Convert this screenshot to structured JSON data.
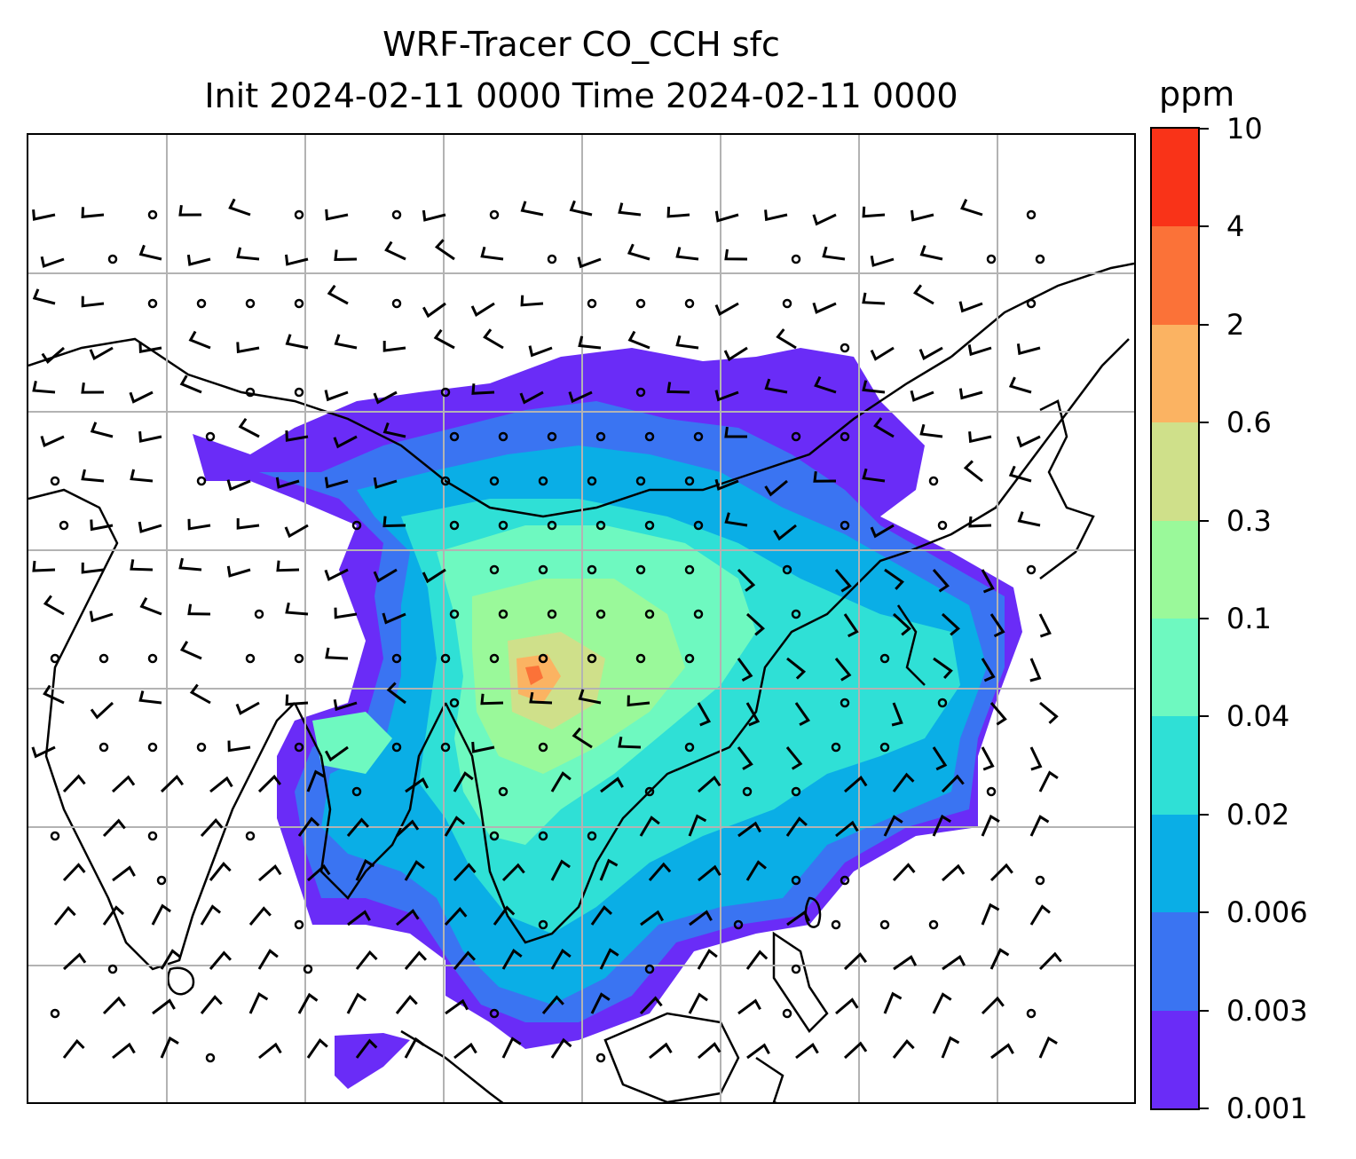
{
  "title": {
    "line1": "WRF-Tracer CO_CCH sfc",
    "line2": "Init 2024-02-11 0000 Time 2024-02-11 0000"
  },
  "colorbar": {
    "unit": "ppm",
    "levels": [
      "0.001",
      "0.003",
      "0.006",
      "0.02",
      "0.04",
      "0.1",
      "0.3",
      "0.6",
      "2",
      "4",
      "10"
    ],
    "colors": [
      "#6a2cf7",
      "#3a74f2",
      "#0aaee6",
      "#2fe0d6",
      "#6ef9c0",
      "#9af99a",
      "#cfe08a",
      "#fbb362",
      "#fb7238",
      "#f93318"
    ]
  },
  "map": {
    "gridlines": "on",
    "grid_color": "#b3b3b3",
    "coastline_color": "#000000",
    "field": "CO_CCH surface concentration",
    "wind": "barbs"
  }
}
